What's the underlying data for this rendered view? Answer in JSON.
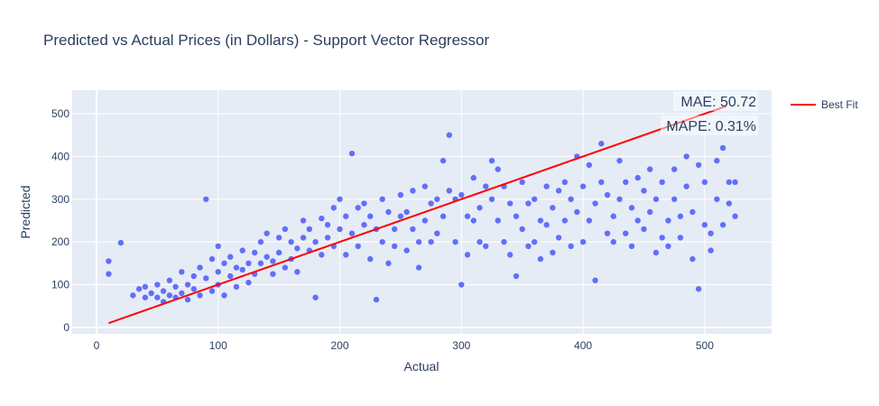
{
  "colors": {
    "plot_bg": "#e5ecf6",
    "scatter": "#636efa",
    "best_fit": "#ff0000",
    "text": "#2a3f5f",
    "grid": "#ffffff"
  },
  "chart_data": {
    "type": "scatter",
    "title": "Predicted vs Actual Prices (in Dollars) - Support Vector Regressor",
    "xlabel": "Actual",
    "ylabel": "Predicted",
    "xlim": [
      -20,
      555
    ],
    "ylim": [
      -15,
      555
    ],
    "xticks": [
      0,
      100,
      200,
      300,
      400,
      500
    ],
    "yticks": [
      0,
      100,
      200,
      300,
      400,
      500
    ],
    "grid": true,
    "legend": {
      "position": "top-right",
      "entries": [
        "Best Fit"
      ]
    },
    "annotations": [
      "MAE: 50.72",
      "MAPE: 0.31%"
    ],
    "series": [
      {
        "type": "scatter",
        "marker_color": "#636efa",
        "points": [
          [
            10,
            155
          ],
          [
            10,
            125
          ],
          [
            20,
            198
          ],
          [
            30,
            75
          ],
          [
            35,
            90
          ],
          [
            40,
            95
          ],
          [
            40,
            70
          ],
          [
            45,
            80
          ],
          [
            50,
            70
          ],
          [
            50,
            100
          ],
          [
            55,
            60
          ],
          [
            55,
            85
          ],
          [
            60,
            75
          ],
          [
            60,
            110
          ],
          [
            65,
            95
          ],
          [
            65,
            70
          ],
          [
            70,
            130
          ],
          [
            70,
            80
          ],
          [
            75,
            100
          ],
          [
            75,
            65
          ],
          [
            80,
            120
          ],
          [
            80,
            90
          ],
          [
            85,
            140
          ],
          [
            85,
            75
          ],
          [
            90,
            300
          ],
          [
            90,
            115
          ],
          [
            95,
            160
          ],
          [
            95,
            85
          ],
          [
            100,
            190
          ],
          [
            100,
            130
          ],
          [
            100,
            100
          ],
          [
            105,
            150
          ],
          [
            105,
            75
          ],
          [
            110,
            165
          ],
          [
            110,
            120
          ],
          [
            115,
            140
          ],
          [
            115,
            95
          ],
          [
            120,
            180
          ],
          [
            120,
            135
          ],
          [
            125,
            150
          ],
          [
            125,
            105
          ],
          [
            130,
            175
          ],
          [
            130,
            125
          ],
          [
            135,
            200
          ],
          [
            135,
            150
          ],
          [
            140,
            220
          ],
          [
            140,
            165
          ],
          [
            145,
            155
          ],
          [
            145,
            125
          ],
          [
            150,
            210
          ],
          [
            150,
            175
          ],
          [
            155,
            230
          ],
          [
            155,
            140
          ],
          [
            160,
            200
          ],
          [
            160,
            160
          ],
          [
            165,
            185
          ],
          [
            165,
            130
          ],
          [
            170,
            250
          ],
          [
            170,
            210
          ],
          [
            175,
            230
          ],
          [
            175,
            180
          ],
          [
            180,
            70
          ],
          [
            180,
            200
          ],
          [
            185,
            255
          ],
          [
            185,
            170
          ],
          [
            190,
            240
          ],
          [
            190,
            210
          ],
          [
            195,
            280
          ],
          [
            195,
            190
          ],
          [
            200,
            300
          ],
          [
            200,
            230
          ],
          [
            205,
            260
          ],
          [
            205,
            170
          ],
          [
            210,
            407
          ],
          [
            210,
            220
          ],
          [
            215,
            280
          ],
          [
            215,
            190
          ],
          [
            220,
            290
          ],
          [
            220,
            240
          ],
          [
            225,
            260
          ],
          [
            225,
            160
          ],
          [
            230,
            65
          ],
          [
            230,
            230
          ],
          [
            235,
            300
          ],
          [
            235,
            200
          ],
          [
            240,
            270
          ],
          [
            240,
            150
          ],
          [
            245,
            230
          ],
          [
            245,
            190
          ],
          [
            250,
            310
          ],
          [
            250,
            260
          ],
          [
            255,
            270
          ],
          [
            255,
            180
          ],
          [
            260,
            320
          ],
          [
            260,
            230
          ],
          [
            265,
            200
          ],
          [
            265,
            140
          ],
          [
            270,
            330
          ],
          [
            270,
            250
          ],
          [
            275,
            290
          ],
          [
            275,
            200
          ],
          [
            280,
            300
          ],
          [
            280,
            220
          ],
          [
            285,
            390
          ],
          [
            285,
            260
          ],
          [
            290,
            450
          ],
          [
            290,
            320
          ],
          [
            295,
            300
          ],
          [
            295,
            200
          ],
          [
            300,
            310
          ],
          [
            300,
            100
          ],
          [
            305,
            260
          ],
          [
            305,
            170
          ],
          [
            310,
            350
          ],
          [
            310,
            250
          ],
          [
            315,
            280
          ],
          [
            315,
            200
          ],
          [
            320,
            330
          ],
          [
            320,
            190
          ],
          [
            325,
            390
          ],
          [
            325,
            300
          ],
          [
            330,
            370
          ],
          [
            330,
            250
          ],
          [
            335,
            330
          ],
          [
            335,
            200
          ],
          [
            340,
            290
          ],
          [
            340,
            170
          ],
          [
            345,
            260
          ],
          [
            345,
            120
          ],
          [
            350,
            340
          ],
          [
            350,
            230
          ],
          [
            355,
            290
          ],
          [
            355,
            190
          ],
          [
            360,
            300
          ],
          [
            360,
            200
          ],
          [
            365,
            160
          ],
          [
            365,
            250
          ],
          [
            370,
            330
          ],
          [
            370,
            240
          ],
          [
            375,
            280
          ],
          [
            375,
            175
          ],
          [
            380,
            320
          ],
          [
            380,
            210
          ],
          [
            385,
            340
          ],
          [
            385,
            250
          ],
          [
            390,
            300
          ],
          [
            390,
            190
          ],
          [
            395,
            400
          ],
          [
            395,
            270
          ],
          [
            400,
            330
          ],
          [
            400,
            200
          ],
          [
            405,
            380
          ],
          [
            405,
            250
          ],
          [
            410,
            290
          ],
          [
            410,
            110
          ],
          [
            415,
            430
          ],
          [
            415,
            340
          ],
          [
            420,
            310
          ],
          [
            420,
            220
          ],
          [
            425,
            260
          ],
          [
            425,
            200
          ],
          [
            430,
            390
          ],
          [
            430,
            300
          ],
          [
            435,
            340
          ],
          [
            435,
            220
          ],
          [
            440,
            280
          ],
          [
            440,
            190
          ],
          [
            445,
            350
          ],
          [
            445,
            250
          ],
          [
            450,
            320
          ],
          [
            450,
            230
          ],
          [
            455,
            370
          ],
          [
            455,
            270
          ],
          [
            460,
            300
          ],
          [
            460,
            175
          ],
          [
            465,
            340
          ],
          [
            465,
            210
          ],
          [
            470,
            250
          ],
          [
            470,
            190
          ],
          [
            475,
            370
          ],
          [
            475,
            300
          ],
          [
            480,
            260
          ],
          [
            480,
            210
          ],
          [
            485,
            400
          ],
          [
            485,
            330
          ],
          [
            490,
            160
          ],
          [
            490,
            270
          ],
          [
            495,
            380
          ],
          [
            495,
            90
          ],
          [
            500,
            340
          ],
          [
            500,
            240
          ],
          [
            505,
            220
          ],
          [
            505,
            180
          ],
          [
            510,
            390
          ],
          [
            510,
            300
          ],
          [
            515,
            420
          ],
          [
            515,
            240
          ],
          [
            520,
            340
          ],
          [
            520,
            290
          ],
          [
            525,
            340
          ],
          [
            525,
            260
          ]
        ]
      },
      {
        "name": "Best Fit",
        "type": "line",
        "line_color": "#ff0000",
        "x": [
          10,
          518
        ],
        "y": [
          10,
          518
        ]
      }
    ]
  }
}
